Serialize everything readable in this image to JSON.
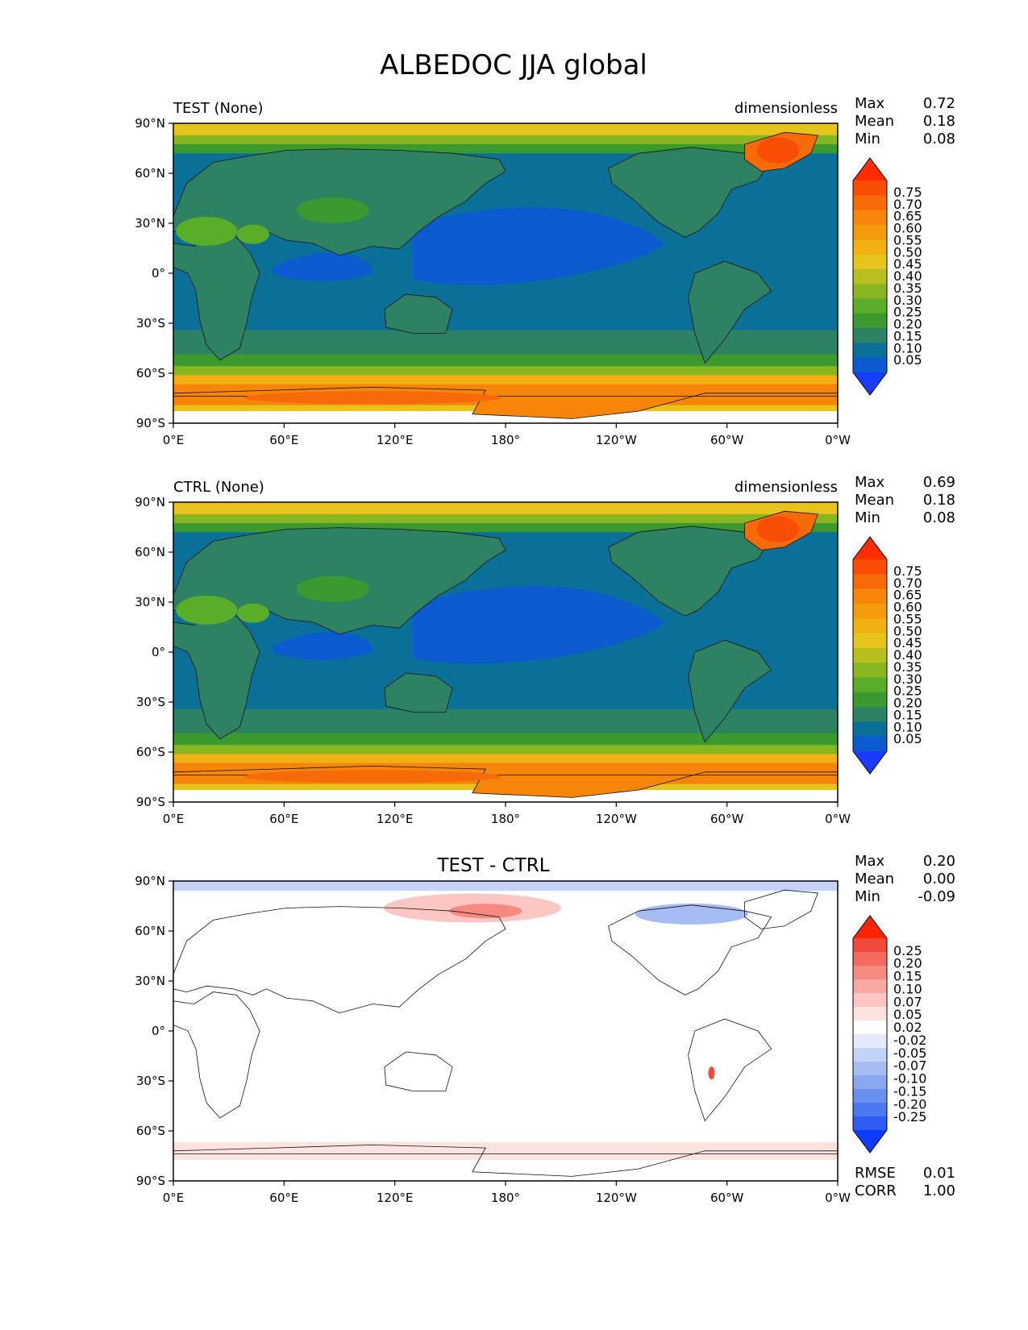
{
  "title": "ALBEDOC JJA global",
  "colors": {
    "field": [
      "#1a3cff",
      "#0a5ad0",
      "#0b7098",
      "#2c8262",
      "#3a9a30",
      "#5aad28",
      "#88b620",
      "#b8c020",
      "#e6c41c",
      "#f3b012",
      "#f59a08",
      "#f7850a",
      "#f66a08",
      "#f94d06",
      "#ff2d00"
    ],
    "diff": [
      "#0b3cff",
      "#2e5cf4",
      "#4c78f0",
      "#6a90ef",
      "#8aa7f0",
      "#a6bcf3",
      "#c6d3f8",
      "#e4eafc",
      "#ffffff",
      "#fde3e0",
      "#fcc7c2",
      "#f9a9a1",
      "#f68a80",
      "#f46a5e",
      "#f24a3a",
      "#ff2400"
    ],
    "ocean_base": "#0b7098",
    "land_base": "#2c8262",
    "coast": "#111111"
  },
  "x_ticks": [
    "0°E",
    "60°E",
    "120°E",
    "180°",
    "120°W",
    "60°W",
    "0°W"
  ],
  "y_ticks": [
    "90°N",
    "60°N",
    "30°N",
    "0°",
    "30°S",
    "60°S",
    "90°S"
  ],
  "panels": [
    {
      "id": "test",
      "left_title": "TEST (None)",
      "center_title": "",
      "right_title": "dimensionless",
      "stats": [
        {
          "label": "Max",
          "value": "0.72"
        },
        {
          "label": "Mean",
          "value": "0.18"
        },
        {
          "label": "Min",
          "value": "0.08"
        }
      ],
      "colorbar": {
        "type": "field",
        "labels": [
          "0.75",
          "0.70",
          "0.65",
          "0.60",
          "0.55",
          "0.50",
          "0.45",
          "0.40",
          "0.35",
          "0.30",
          "0.25",
          "0.20",
          "0.15",
          "0.10",
          "0.05"
        ]
      },
      "bottom_stats": []
    },
    {
      "id": "ctrl",
      "left_title": "CTRL (None)",
      "center_title": "",
      "right_title": "dimensionless",
      "stats": [
        {
          "label": "Max",
          "value": "0.69"
        },
        {
          "label": "Mean",
          "value": "0.18"
        },
        {
          "label": "Min",
          "value": "0.08"
        }
      ],
      "colorbar": {
        "type": "field",
        "labels": [
          "0.75",
          "0.70",
          "0.65",
          "0.60",
          "0.55",
          "0.50",
          "0.45",
          "0.40",
          "0.35",
          "0.30",
          "0.25",
          "0.20",
          "0.15",
          "0.10",
          "0.05"
        ]
      },
      "bottom_stats": []
    },
    {
      "id": "diff",
      "left_title": "",
      "center_title": "TEST - CTRL",
      "right_title": "",
      "stats": [
        {
          "label": "Max",
          "value": "0.20"
        },
        {
          "label": "Mean",
          "value": "0.00"
        },
        {
          "label": "Min",
          "value": "-0.09"
        }
      ],
      "colorbar": {
        "type": "diff",
        "labels": [
          "0.25",
          "0.20",
          "0.15",
          "0.10",
          "0.07",
          "0.05",
          "0.02",
          "-0.02",
          "-0.05",
          "-0.07",
          "-0.10",
          "-0.15",
          "-0.20",
          "-0.25"
        ]
      },
      "bottom_stats": [
        {
          "label": "RMSE",
          "value": "0.01"
        },
        {
          "label": "CORR",
          "value": "1.00"
        }
      ]
    }
  ]
}
